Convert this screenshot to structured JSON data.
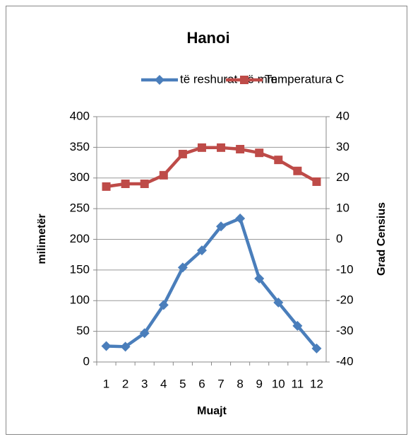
{
  "chart_data": {
    "type": "line",
    "title": "Hanoi",
    "x_label": "Muajt",
    "y_label": "milimetër",
    "y2_label": "Grad Censius",
    "categories": [
      "1",
      "2",
      "3",
      "4",
      "5",
      "6",
      "7",
      "8",
      "9",
      "10",
      "11",
      "12"
    ],
    "series": [
      {
        "name": "të reshurat në mm",
        "color": "#4a7ebb",
        "marker": "diamond",
        "values": [
          26,
          25,
          47,
          93,
          154,
          182,
          221,
          234,
          136,
          97,
          59,
          22
        ]
      },
      {
        "name": "Temperatura C",
        "color": "#be4b48",
        "marker": "square",
        "axis": "y2",
        "values": [
          17.2,
          18.1,
          18.1,
          20.9,
          27.8,
          29.9,
          29.9,
          29.4,
          28.2,
          25.9,
          22.3,
          18.8
        ]
      }
    ],
    "ylim": [
      0,
      400
    ],
    "yticks": [
      0,
      50,
      100,
      150,
      200,
      250,
      300,
      350,
      400
    ],
    "y2lim": [
      -40,
      40
    ],
    "y2ticks": [
      -40,
      -30,
      -20,
      -10,
      0,
      10,
      20,
      30,
      40
    ],
    "grid": true,
    "legend": "top"
  }
}
